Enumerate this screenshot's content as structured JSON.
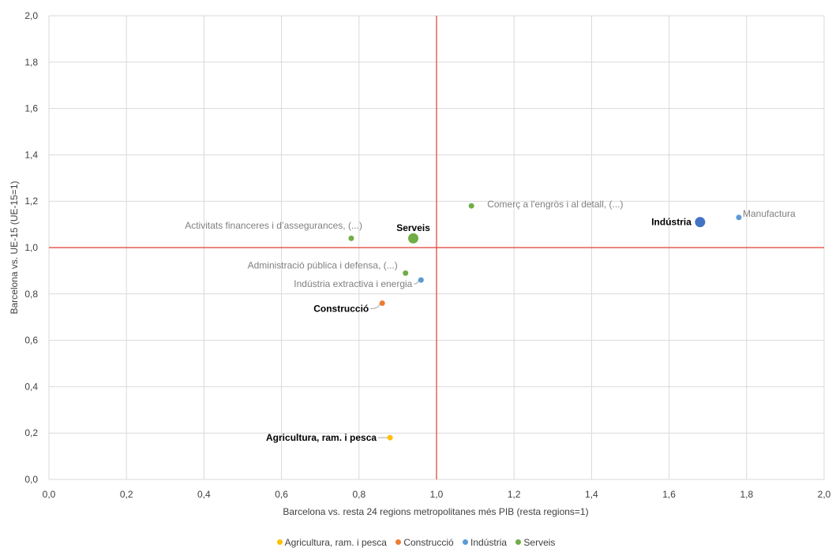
{
  "chart_data": {
    "type": "scatter",
    "xlabel": "Barcelona vs. resta 24 regions metropolitanes més PIB (resta regions=1)",
    "ylabel": "Barcelona vs. UE-15 (UE-15=1)",
    "xlim": [
      0,
      2
    ],
    "ylim": [
      0,
      2
    ],
    "x_ticks": [
      "0,0",
      "0,2",
      "0,4",
      "0,6",
      "0,8",
      "1,0",
      "1,2",
      "1,4",
      "1,6",
      "1,8",
      "2,0"
    ],
    "y_ticks": [
      "0,0",
      "0,2",
      "0,4",
      "0,6",
      "0,8",
      "1,0",
      "1,2",
      "1,4",
      "1,6",
      "1,8",
      "2,0"
    ],
    "grid": true,
    "reference_lines": {
      "x": 1.0,
      "y": 1.0,
      "color": "#E03C31"
    },
    "legend_position": "bottom",
    "series": [
      {
        "name": "Agricultura, ram. i pesca",
        "color": "#FFC000",
        "points": [
          {
            "label": "Agricultura, ram. i pesca",
            "x": 0.88,
            "y": 0.18,
            "aggregate": true
          }
        ]
      },
      {
        "name": "Construcció",
        "color": "#ED7D31",
        "points": [
          {
            "label": "Construcció",
            "x": 0.86,
            "y": 0.76,
            "aggregate": true
          }
        ]
      },
      {
        "name": "Indústria",
        "color": "#5B9BD5",
        "points": [
          {
            "label": "Indústria",
            "x": 1.68,
            "y": 1.11,
            "aggregate": true,
            "color": "#4472C4"
          },
          {
            "label": "Manufactura",
            "x": 1.78,
            "y": 1.13
          },
          {
            "label": "Indústria extractiva i energia",
            "x": 0.96,
            "y": 0.86
          }
        ]
      },
      {
        "name": "Serveis",
        "color": "#70AD47",
        "points": [
          {
            "label": "Serveis",
            "x": 0.94,
            "y": 1.04,
            "aggregate": true
          },
          {
            "label": "Comerç a l'engròs i al detall, (...)",
            "x": 1.09,
            "y": 1.18
          },
          {
            "label": "Activitats financeres i d’assegurances, (...)",
            "x": 0.78,
            "y": 1.04
          },
          {
            "label": "Administració pública i defensa, (...)",
            "x": 0.92,
            "y": 0.89
          }
        ]
      }
    ]
  },
  "legend": [
    {
      "label": "Agricultura, ram. i pesca",
      "color": "#FFC000"
    },
    {
      "label": "Construcció",
      "color": "#ED7D31"
    },
    {
      "label": "Indústria",
      "color": "#5B9BD5"
    },
    {
      "label": "Serveis",
      "color": "#70AD47"
    }
  ]
}
